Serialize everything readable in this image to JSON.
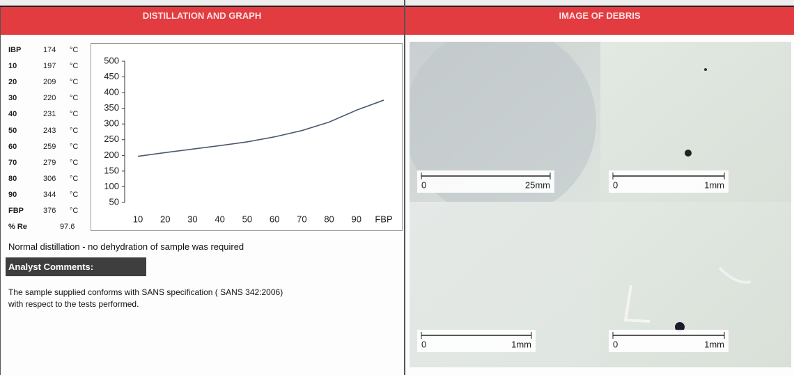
{
  "left_header": "DISTILLATION AND GRAPH",
  "right_header": "IMAGE OF DEBRIS",
  "distillation": {
    "rows": [
      [
        "IBP",
        174,
        "°C"
      ],
      [
        "10",
        197,
        "°C"
      ],
      [
        "20",
        209,
        "°C"
      ],
      [
        "30",
        220,
        "°C"
      ],
      [
        "40",
        231,
        "°C"
      ],
      [
        "50",
        243,
        "°C"
      ],
      [
        "60",
        259,
        "°C"
      ],
      [
        "70",
        279,
        "°C"
      ],
      [
        "80",
        306,
        "°C"
      ],
      [
        "90",
        344,
        "°C"
      ],
      [
        "FBP",
        376,
        "°C"
      ],
      [
        "% Re",
        97.6
      ]
    ]
  },
  "chart_data": {
    "type": "line",
    "categories": [
      "10",
      "20",
      "30",
      "40",
      "50",
      "60",
      "70",
      "80",
      "90",
      "FBP"
    ],
    "values": [
      197,
      209,
      220,
      231,
      243,
      259,
      279,
      306,
      344,
      376
    ],
    "color": "#4a5870",
    "ylim": [
      50,
      500
    ],
    "yticks": [
      50,
      100,
      150,
      200,
      250,
      300,
      350,
      400,
      450,
      500
    ]
  },
  "note": "Normal distillation - no dehydration of sample was required",
  "comments": {
    "title": "Analyst Comments:",
    "lines": [
      "The sample supplied conforms with SANS specification ( SANS 342:2006)",
      "with respect to the tests performed."
    ]
  },
  "images": [
    {
      "scale_start": "0",
      "scale_end": "25mm"
    },
    {
      "scale_start": "0",
      "scale_end": "1mm"
    },
    {
      "scale_start": "0",
      "scale_end": "1mm"
    },
    {
      "scale_start": "0",
      "scale_end": "1mm"
    }
  ]
}
